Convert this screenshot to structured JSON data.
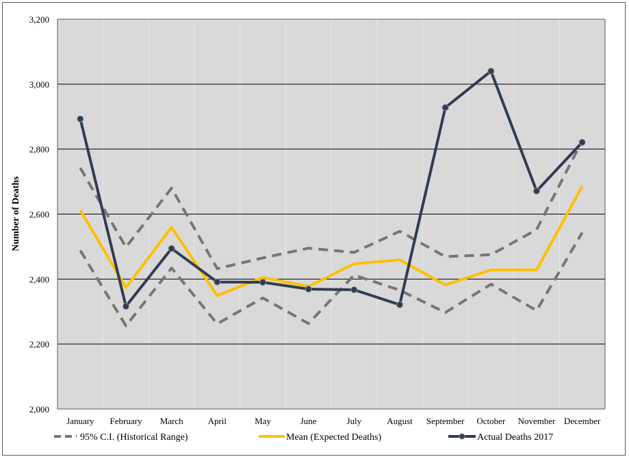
{
  "chart_data": {
    "type": "line",
    "title": "",
    "xlabel": "",
    "ylabel": "Number of Deaths",
    "ylim": [
      2000,
      3200
    ],
    "yticks": [
      2000,
      2200,
      2400,
      2600,
      2800,
      3000,
      3200
    ],
    "ytick_labels": [
      "2,000",
      "2,200",
      "2,400",
      "2,600",
      "2,800",
      "3,000",
      "3,200"
    ],
    "grid": true,
    "legend_position": "bottom",
    "categories": [
      "January",
      "February",
      "March",
      "April",
      "May",
      "June",
      "July",
      "August",
      "September",
      "October",
      "November",
      "December"
    ],
    "series": [
      {
        "name": "95% C.I.  (Historical Range)",
        "style": "dashed",
        "color": "#767676",
        "upper": [
          2742,
          2498,
          2680,
          2432,
          2465,
          2495,
          2482,
          2547,
          2469,
          2475,
          2552,
          2826
        ],
        "lower": [
          2488,
          2256,
          2434,
          2262,
          2342,
          2263,
          2412,
          2366,
          2297,
          2384,
          2303,
          2543
        ]
      },
      {
        "name": "Mean (Expected Deaths)",
        "style": "solid",
        "color": "#FFC000",
        "values": [
          2612,
          2374,
          2559,
          2349,
          2405,
          2377,
          2447,
          2459,
          2382,
          2428,
          2428,
          2686
        ]
      },
      {
        "name": "Actual Deaths 2017",
        "style": "solid-markers",
        "color": "#323C4E",
        "values": [
          2893,
          2316,
          2494,
          2391,
          2390,
          2369,
          2367,
          2321,
          2928,
          3040,
          2671,
          2821
        ]
      }
    ]
  }
}
